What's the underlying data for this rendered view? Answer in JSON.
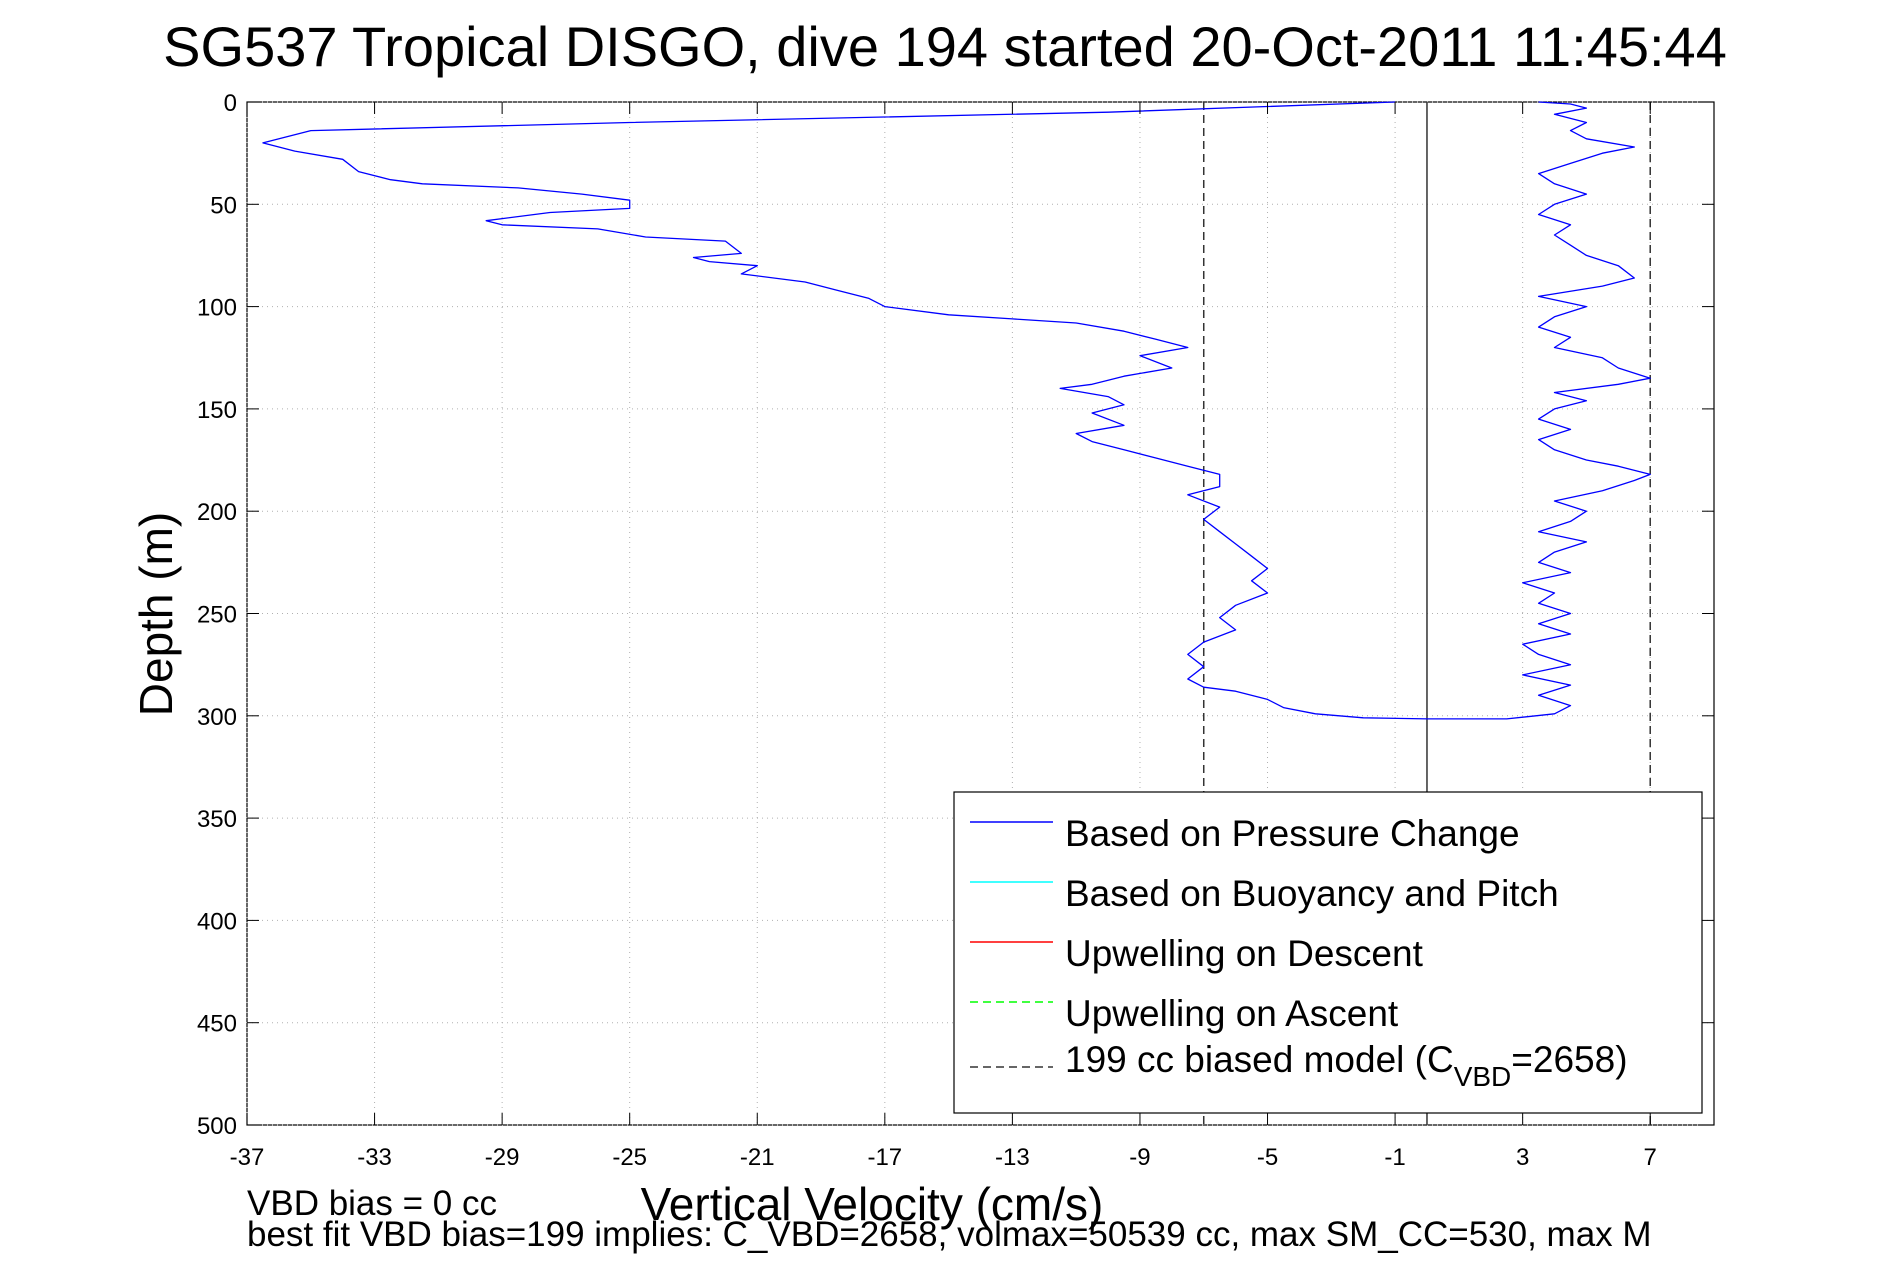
{
  "chart_data": {
    "type": "line",
    "title": "SG537 Tropical DISGO, dive 194 started 20-Oct-2011 11:45:44",
    "xlabel": "Vertical Velocity (cm/s)",
    "ylabel": "Depth (m)",
    "xlim": [
      -37,
      9
    ],
    "ylim": [
      0,
      500
    ],
    "y_reversed": true,
    "grid": true,
    "legend_position": "bottom-right",
    "xticks": [
      -37,
      -33,
      -29,
      -25,
      -21,
      -17,
      -13,
      -9,
      -5,
      -1,
      3,
      7
    ],
    "xtick_labels": [
      "-37",
      "-33",
      "-29",
      "-25",
      "-21",
      "-17",
      "-13",
      "-9",
      "-5",
      "-1",
      "3",
      "7"
    ],
    "yticks": [
      0,
      50,
      100,
      150,
      200,
      250,
      300,
      350,
      400,
      450,
      500
    ],
    "ytick_labels": [
      "0",
      "50",
      "100",
      "150",
      "200",
      "250",
      "300",
      "350",
      "400",
      "450",
      "500"
    ],
    "reference_lines": [
      {
        "x": -7,
        "style": "dashed",
        "color": "#333333"
      },
      {
        "x": 0,
        "style": "solid",
        "color": "#333333"
      },
      {
        "x": 7,
        "style": "dashed",
        "color": "#333333"
      }
    ],
    "series": [
      {
        "name": "Based on Pressure Change",
        "color": "#0000ff",
        "style": "solid",
        "descent": [
          [
            -1.0,
            0
          ],
          [
            -10.0,
            5
          ],
          [
            -25.0,
            10
          ],
          [
            -35.0,
            14
          ],
          [
            -36.5,
            20
          ],
          [
            -35.5,
            24
          ],
          [
            -34.0,
            28
          ],
          [
            -33.5,
            34
          ],
          [
            -32.5,
            38
          ],
          [
            -31.5,
            40
          ],
          [
            -28.5,
            42
          ],
          [
            -26.5,
            45
          ],
          [
            -25.0,
            48
          ],
          [
            -25.0,
            52
          ],
          [
            -27.5,
            54
          ],
          [
            -29.5,
            58
          ],
          [
            -29.0,
            60
          ],
          [
            -26.0,
            62
          ],
          [
            -24.5,
            66
          ],
          [
            -22.0,
            68
          ],
          [
            -21.5,
            74
          ],
          [
            -23.0,
            76
          ],
          [
            -22.5,
            78
          ],
          [
            -21.0,
            80
          ],
          [
            -21.5,
            84
          ],
          [
            -19.5,
            88
          ],
          [
            -18.5,
            92
          ],
          [
            -17.5,
            96
          ],
          [
            -17.0,
            100
          ],
          [
            -15.0,
            104
          ],
          [
            -13.0,
            106
          ],
          [
            -11.0,
            108
          ],
          [
            -9.5,
            112
          ],
          [
            -8.5,
            116
          ],
          [
            -7.5,
            120
          ],
          [
            -9.0,
            124
          ],
          [
            -8.0,
            130
          ],
          [
            -9.5,
            134
          ],
          [
            -10.5,
            138
          ],
          [
            -11.5,
            140
          ],
          [
            -10.0,
            144
          ],
          [
            -9.5,
            148
          ],
          [
            -10.5,
            152
          ],
          [
            -9.5,
            158
          ],
          [
            -11.0,
            162
          ],
          [
            -10.5,
            166
          ],
          [
            -9.5,
            170
          ],
          [
            -8.5,
            174
          ],
          [
            -7.5,
            178
          ],
          [
            -6.5,
            182
          ],
          [
            -6.5,
            188
          ],
          [
            -7.5,
            192
          ],
          [
            -6.5,
            198
          ],
          [
            -7.0,
            204
          ],
          [
            -6.5,
            210
          ],
          [
            -6.0,
            216
          ],
          [
            -5.5,
            222
          ],
          [
            -5.0,
            228
          ],
          [
            -5.5,
            234
          ],
          [
            -5.0,
            240
          ],
          [
            -6.0,
            246
          ],
          [
            -6.5,
            252
          ],
          [
            -6.0,
            258
          ],
          [
            -7.0,
            264
          ],
          [
            -7.5,
            270
          ],
          [
            -7.0,
            276
          ],
          [
            -7.5,
            282
          ],
          [
            -7.0,
            286
          ],
          [
            -6.0,
            288
          ],
          [
            -5.0,
            292
          ],
          [
            -4.5,
            296
          ],
          [
            -3.5,
            299
          ],
          [
            -2.0,
            301
          ],
          [
            0.0,
            301.5
          ]
        ],
        "ascent": [
          [
            2.5,
            301.5
          ],
          [
            4.0,
            299
          ],
          [
            4.5,
            295
          ],
          [
            3.5,
            290
          ],
          [
            4.5,
            285
          ],
          [
            3.0,
            280
          ],
          [
            4.5,
            275
          ],
          [
            3.5,
            270
          ],
          [
            3.0,
            265
          ],
          [
            4.5,
            260
          ],
          [
            3.5,
            255
          ],
          [
            4.5,
            250
          ],
          [
            3.5,
            245
          ],
          [
            4.0,
            240
          ],
          [
            3.0,
            235
          ],
          [
            4.5,
            230
          ],
          [
            3.5,
            225
          ],
          [
            4.0,
            220
          ],
          [
            5.0,
            215
          ],
          [
            3.5,
            210
          ],
          [
            4.5,
            205
          ],
          [
            5.0,
            200
          ],
          [
            4.0,
            195
          ],
          [
            5.5,
            190
          ],
          [
            6.5,
            185
          ],
          [
            7.0,
            182
          ],
          [
            6.0,
            178
          ],
          [
            5.0,
            175
          ],
          [
            4.0,
            170
          ],
          [
            3.5,
            165
          ],
          [
            4.5,
            160
          ],
          [
            3.5,
            155
          ],
          [
            4.0,
            150
          ],
          [
            5.0,
            146
          ],
          [
            4.0,
            142
          ],
          [
            6.0,
            138
          ],
          [
            7.0,
            135
          ],
          [
            6.0,
            130
          ],
          [
            5.5,
            125
          ],
          [
            4.0,
            120
          ],
          [
            4.5,
            115
          ],
          [
            3.5,
            110
          ],
          [
            4.0,
            105
          ],
          [
            5.0,
            100
          ],
          [
            3.5,
            95
          ],
          [
            5.5,
            90
          ],
          [
            6.5,
            86
          ],
          [
            6.0,
            80
          ],
          [
            5.0,
            75
          ],
          [
            4.5,
            70
          ],
          [
            4.0,
            65
          ],
          [
            4.5,
            60
          ],
          [
            3.5,
            55
          ],
          [
            4.0,
            50
          ],
          [
            5.0,
            45
          ],
          [
            4.0,
            40
          ],
          [
            3.5,
            35
          ],
          [
            4.5,
            30
          ],
          [
            5.5,
            25
          ],
          [
            6.5,
            22
          ],
          [
            5.0,
            18
          ],
          [
            4.5,
            14
          ],
          [
            5.0,
            10
          ],
          [
            4.0,
            6
          ],
          [
            5.0,
            3
          ],
          [
            4.5,
            1
          ],
          [
            3.5,
            0
          ]
        ]
      },
      {
        "name": "Based on Buoyancy and Pitch",
        "color": "#00ffff",
        "style": "solid",
        "points": []
      },
      {
        "name": "Upwelling on Descent",
        "color": "#ff0000",
        "style": "solid",
        "points": []
      },
      {
        "name": "Upwelling on Ascent",
        "color": "#00ff00",
        "style": "dashed",
        "points": []
      }
    ],
    "legend": {
      "entries": [
        {
          "label": "Based on Pressure Change",
          "color": "#0000ff",
          "style": "solid"
        },
        {
          "label": "Based on Buoyancy and Pitch",
          "color": "#00ffff",
          "style": "solid"
        },
        {
          "label": "Upwelling on Descent",
          "color": "#ff0000",
          "style": "solid"
        },
        {
          "label": "Upwelling on Ascent",
          "color": "#00ff00",
          "style": "dashed"
        },
        {
          "label_prefix": "199 cc biased model (C",
          "label_sub": "VBD",
          "label_suffix": "=2658)",
          "color": "#333333",
          "style": "dashed"
        }
      ]
    },
    "footnotes": {
      "line1": "VBD bias = 0 cc",
      "line2": "best fit VBD bias=199 implies: C_VBD=2658, volmax=50539 cc, max SM_CC=530, max M"
    }
  }
}
